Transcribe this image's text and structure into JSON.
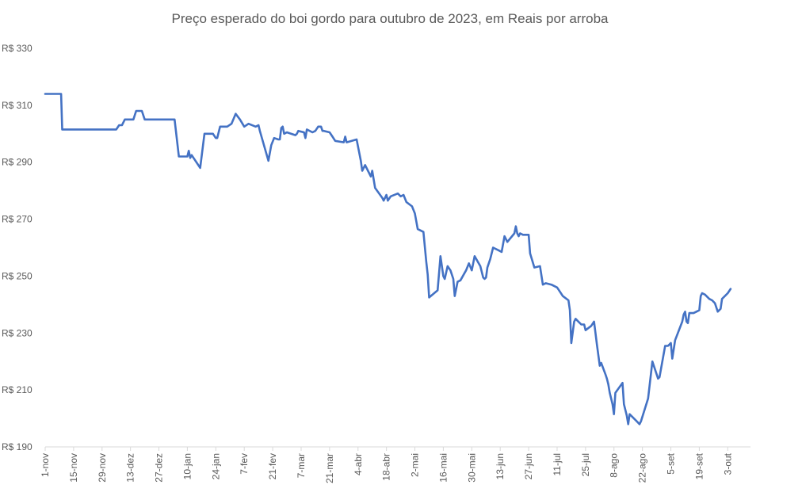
{
  "chart_data": {
    "type": "line",
    "title": "Preço esperado do boi gordo para  outubro de 2023, em Reais por arroba",
    "xlabel": "",
    "ylabel": "",
    "ylim": [
      190,
      330
    ],
    "yticks": [
      330,
      310,
      290,
      270,
      250,
      230,
      210,
      190
    ],
    "ytick_labels": [
      "R$ 330",
      "R$ 310",
      "R$ 290",
      "R$ 270",
      "R$ 250",
      "R$ 230",
      "R$ 210",
      "R$ 190"
    ],
    "xlim": [
      0,
      248
    ],
    "xticks": [
      {
        "x": 0,
        "label": "1-nov"
      },
      {
        "x": 10,
        "label": "15-nov"
      },
      {
        "x": 20,
        "label": "29-nov"
      },
      {
        "x": 30,
        "label": "13-dez"
      },
      {
        "x": 40,
        "label": "27-dez"
      },
      {
        "x": 50,
        "label": "10-jan"
      },
      {
        "x": 60,
        "label": "24-jan"
      },
      {
        "x": 70,
        "label": "7-fev"
      },
      {
        "x": 80,
        "label": "21-fev"
      },
      {
        "x": 90,
        "label": "7-mar"
      },
      {
        "x": 100,
        "label": "21-mar"
      },
      {
        "x": 110,
        "label": "4-abr"
      },
      {
        "x": 120,
        "label": "18-abr"
      },
      {
        "x": 130,
        "label": "2-mai"
      },
      {
        "x": 140,
        "label": "16-mai"
      },
      {
        "x": 150,
        "label": "30-mai"
      },
      {
        "x": 160,
        "label": "13-jun"
      },
      {
        "x": 170,
        "label": "27-jun"
      },
      {
        "x": 180,
        "label": "11-jul"
      },
      {
        "x": 190,
        "label": "25-jul"
      },
      {
        "x": 200,
        "label": "8-ago"
      },
      {
        "x": 210,
        "label": "22-ago"
      },
      {
        "x": 220,
        "label": "5-set"
      },
      {
        "x": 230,
        "label": "19-set"
      },
      {
        "x": 240,
        "label": "3-out"
      }
    ],
    "series": [
      {
        "name": "Preço esperado",
        "color": "#4472C4",
        "points": [
          [
            0,
            314
          ],
          [
            5.6,
            314
          ],
          [
            6.0,
            301.5
          ],
          [
            25,
            301.5
          ],
          [
            26,
            303
          ],
          [
            27,
            303
          ],
          [
            28,
            305
          ],
          [
            31,
            305
          ],
          [
            32,
            308
          ],
          [
            34,
            308
          ],
          [
            35,
            305
          ],
          [
            45.5,
            305
          ],
          [
            47,
            292
          ],
          [
            50,
            292
          ],
          [
            50.5,
            294
          ],
          [
            51,
            291.5
          ],
          [
            51.5,
            292.5
          ],
          [
            54.5,
            288
          ],
          [
            55.5,
            296
          ],
          [
            56,
            300
          ],
          [
            59,
            300
          ],
          [
            60,
            298.5
          ],
          [
            60.5,
            298.5
          ],
          [
            61.5,
            302.5
          ],
          [
            64,
            302.5
          ],
          [
            65.5,
            303.5
          ],
          [
            67,
            307
          ],
          [
            68.5,
            305
          ],
          [
            70,
            302.5
          ],
          [
            71.5,
            303.5
          ],
          [
            74,
            302.5
          ],
          [
            75,
            303
          ],
          [
            75.5,
            301
          ],
          [
            78.5,
            290.5
          ],
          [
            79.5,
            296
          ],
          [
            80.5,
            298.5
          ],
          [
            82,
            298
          ],
          [
            82.5,
            298
          ],
          [
            83,
            302
          ],
          [
            83.5,
            302.5
          ],
          [
            84,
            300
          ],
          [
            85,
            300.5
          ],
          [
            88,
            299.5
          ],
          [
            88.5,
            300
          ],
          [
            89,
            301
          ],
          [
            91,
            300.5
          ],
          [
            91.5,
            298.5
          ],
          [
            92,
            301.5
          ],
          [
            94,
            300.5
          ],
          [
            95,
            301
          ],
          [
            96,
            302.5
          ],
          [
            97,
            302.5
          ],
          [
            97.5,
            301
          ],
          [
            98,
            301
          ],
          [
            100,
            300.5
          ],
          [
            101,
            299
          ],
          [
            102,
            297.5
          ],
          [
            105,
            297
          ],
          [
            105.5,
            299
          ],
          [
            106,
            297
          ],
          [
            109.5,
            298
          ],
          [
            111,
            290.5
          ],
          [
            111.5,
            287
          ],
          [
            112.5,
            289
          ],
          [
            113.5,
            287
          ],
          [
            114.5,
            285
          ],
          [
            115,
            287
          ],
          [
            116,
            281
          ],
          [
            118.5,
            277.5
          ],
          [
            119,
            276.5
          ],
          [
            120,
            278.5
          ],
          [
            120.5,
            276.5
          ],
          [
            121.5,
            278
          ],
          [
            124,
            279
          ],
          [
            125,
            278
          ],
          [
            126,
            278.5
          ],
          [
            127,
            276
          ],
          [
            129,
            274.5
          ],
          [
            130,
            272
          ],
          [
            131,
            266.5
          ],
          [
            133,
            265.5
          ],
          [
            134,
            255
          ],
          [
            134.5,
            250.5
          ],
          [
            135,
            242.5
          ],
          [
            138,
            245
          ],
          [
            139,
            257
          ],
          [
            140,
            250
          ],
          [
            140.5,
            249
          ],
          [
            141.5,
            253.5
          ],
          [
            142.5,
            252
          ],
          [
            143.5,
            249
          ],
          [
            144,
            243
          ],
          [
            145,
            248
          ],
          [
            146,
            248.5
          ],
          [
            148,
            252
          ],
          [
            149,
            254.5
          ],
          [
            150,
            252
          ],
          [
            151,
            257
          ],
          [
            153,
            253.5
          ],
          [
            154,
            249.5
          ],
          [
            154.5,
            249
          ],
          [
            155,
            249.5
          ],
          [
            155.5,
            253
          ],
          [
            156.5,
            256
          ],
          [
            157.5,
            260
          ],
          [
            159.5,
            259
          ],
          [
            160.5,
            258.5
          ],
          [
            161.5,
            264
          ],
          [
            162,
            263
          ],
          [
            162.5,
            262
          ],
          [
            165,
            265
          ],
          [
            165.5,
            267.5
          ],
          [
            166,
            265
          ],
          [
            166.5,
            264
          ],
          [
            167,
            265
          ],
          [
            168,
            264.5
          ],
          [
            170,
            264.5
          ],
          [
            170.5,
            258
          ],
          [
            172,
            253
          ],
          [
            174,
            253.5
          ],
          [
            175,
            247
          ],
          [
            176,
            247.5
          ],
          [
            178,
            247
          ],
          [
            180,
            246
          ],
          [
            181,
            244.5
          ],
          [
            182,
            243
          ],
          [
            184,
            241.5
          ],
          [
            184.5,
            238
          ],
          [
            185,
            226.5
          ],
          [
            186,
            234
          ],
          [
            186.5,
            235
          ],
          [
            187.5,
            234
          ],
          [
            188.5,
            233
          ],
          [
            189.5,
            233
          ],
          [
            190,
            231
          ],
          [
            192,
            232.5
          ],
          [
            193,
            234
          ],
          [
            194,
            226
          ],
          [
            195,
            218.5
          ],
          [
            195.5,
            219.5
          ],
          [
            197,
            215.5
          ],
          [
            197.5,
            214
          ],
          [
            198,
            212
          ],
          [
            198.5,
            209
          ],
          [
            199.5,
            205
          ],
          [
            200,
            201.5
          ],
          [
            200.5,
            209
          ],
          [
            203,
            212.5
          ],
          [
            203.5,
            205
          ],
          [
            204.5,
            201
          ],
          [
            205,
            198
          ],
          [
            205.5,
            201.5
          ],
          [
            208,
            199
          ],
          [
            209,
            198
          ],
          [
            209.5,
            199
          ],
          [
            212,
            207
          ],
          [
            213.5,
            220
          ],
          [
            215.5,
            214
          ],
          [
            216,
            214.5
          ],
          [
            218,
            225.5
          ],
          [
            219,
            225.5
          ],
          [
            220,
            226.5
          ],
          [
            220.5,
            221
          ],
          [
            221.5,
            227.5
          ],
          [
            224,
            234
          ],
          [
            224.5,
            236.5
          ],
          [
            225,
            237.5
          ],
          [
            225.5,
            234
          ],
          [
            226,
            233.5
          ],
          [
            226.5,
            237
          ],
          [
            228,
            237
          ],
          [
            229,
            237.5
          ],
          [
            230,
            238
          ],
          [
            230.5,
            243
          ],
          [
            231,
            244
          ],
          [
            232,
            243.5
          ],
          [
            233.5,
            242
          ],
          [
            234.5,
            241.5
          ],
          [
            235.5,
            240.5
          ],
          [
            236.5,
            237.5
          ],
          [
            237.5,
            238.5
          ],
          [
            238,
            242
          ],
          [
            240,
            244
          ],
          [
            241,
            245.5
          ]
        ]
      }
    ]
  }
}
